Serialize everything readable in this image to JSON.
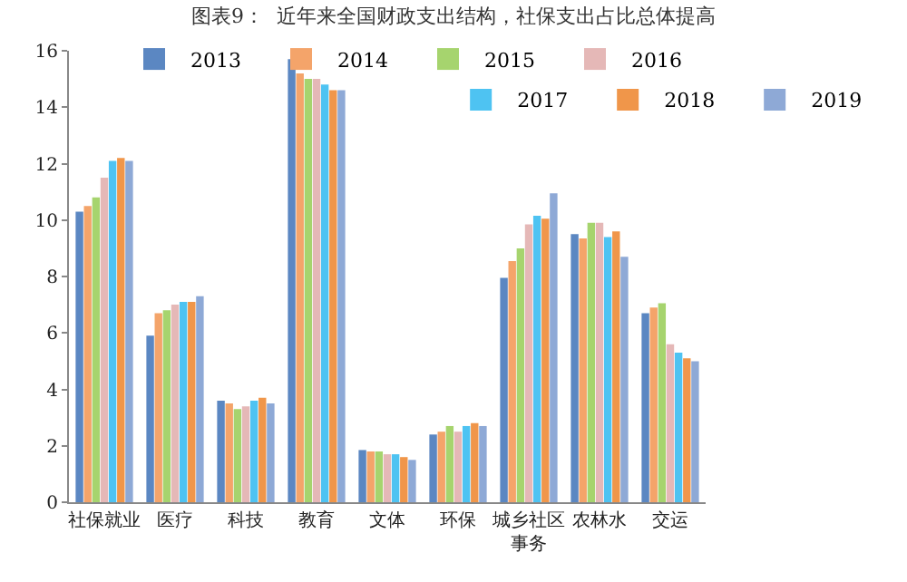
{
  "chart_data": {
    "type": "bar",
    "title": "图表9：  近年来全国财政支出结构，社保支出占比总体提高",
    "categories": [
      "社保就业",
      "医疗",
      "科技",
      "教育",
      "文体",
      "环保",
      "城乡社区事务",
      "农林水",
      "交运"
    ],
    "series": [
      {
        "name": "2013",
        "color": "#5b87c2",
        "values": [
          10.3,
          5.9,
          3.6,
          15.7,
          1.85,
          2.4,
          7.95,
          9.5,
          6.7
        ]
      },
      {
        "name": "2014",
        "color": "#f4a46a",
        "values": [
          10.5,
          6.7,
          3.5,
          15.2,
          1.8,
          2.5,
          8.55,
          9.35,
          6.9
        ]
      },
      {
        "name": "2015",
        "color": "#a6d46e",
        "values": [
          10.8,
          6.8,
          3.3,
          15.0,
          1.8,
          2.7,
          9.0,
          9.9,
          7.05
        ]
      },
      {
        "name": "2016",
        "color": "#e5b8b7",
        "values": [
          11.5,
          7.0,
          3.4,
          15.0,
          1.7,
          2.5,
          9.85,
          9.9,
          5.6
        ]
      },
      {
        "name": "2017",
        "color": "#4ec3f2",
        "values": [
          12.1,
          7.1,
          3.6,
          14.8,
          1.7,
          2.7,
          10.15,
          9.4,
          5.3
        ]
      },
      {
        "name": "2018",
        "color": "#f0964a",
        "values": [
          12.2,
          7.1,
          3.7,
          14.6,
          1.6,
          2.8,
          10.05,
          9.6,
          5.1
        ]
      },
      {
        "name": "2019",
        "color": "#8ea9d6",
        "values": [
          12.1,
          7.3,
          3.5,
          14.6,
          1.5,
          2.7,
          10.95,
          8.7,
          5.0
        ]
      }
    ],
    "ylim": [
      0,
      16
    ],
    "yticks": [
      0,
      2,
      4,
      6,
      8,
      10,
      12,
      14,
      16
    ],
    "legend": "top right"
  }
}
